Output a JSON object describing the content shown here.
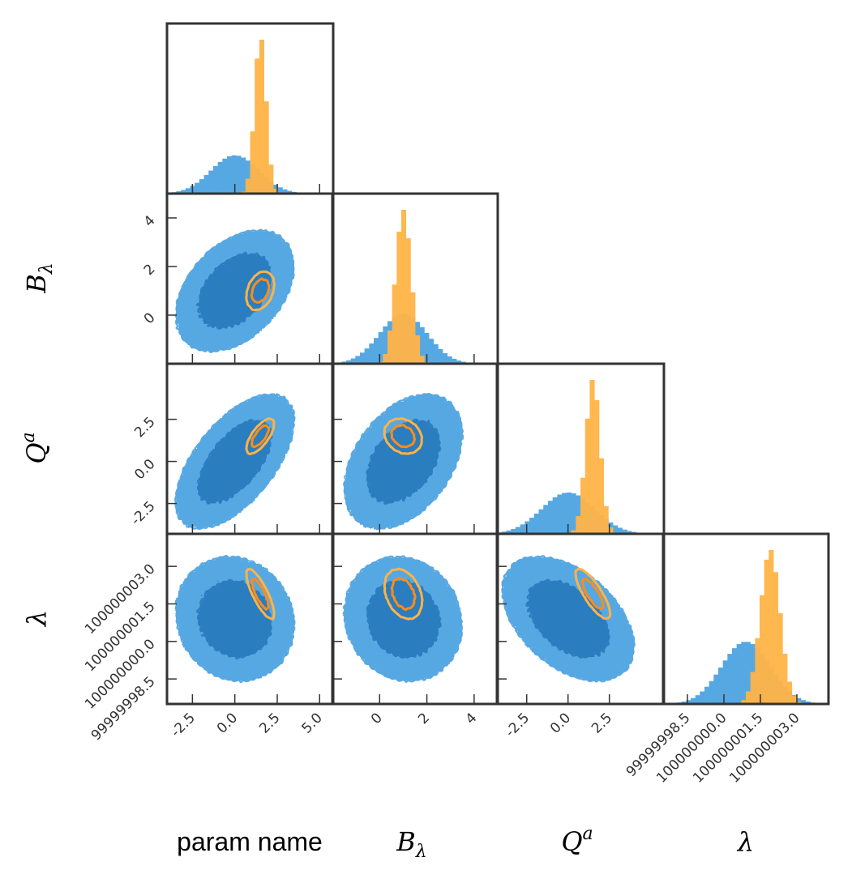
{
  "chart_data": {
    "type": "corner",
    "parameters": [
      {
        "key": "p0",
        "label": "param name",
        "base": "",
        "sub": "",
        "sup": "",
        "range": [
          -4.0,
          5.8
        ],
        "ticks": [
          -2.5,
          0.0,
          2.5,
          5.0
        ],
        "tick_labels": [
          "-2.5",
          "0.0",
          "2.5",
          "5.0"
        ]
      },
      {
        "key": "p1",
        "label": "",
        "base": "B",
        "sub": "λ",
        "sup": "",
        "range": [
          -2.0,
          5.0
        ],
        "ticks": [
          0,
          2,
          4
        ],
        "tick_labels": [
          "0",
          "2",
          "4"
        ]
      },
      {
        "key": "p2",
        "label": "",
        "base": "Q",
        "sub": "",
        "sup": "a",
        "range": [
          -4.3,
          5.8
        ],
        "ticks": [
          -2.5,
          0.0,
          2.5
        ],
        "tick_labels": [
          "-2.5",
          "0.0",
          "2.5"
        ]
      },
      {
        "key": "p3",
        "label": "",
        "base": "λ",
        "sub": "",
        "sup": "",
        "range": [
          99999997.5,
          100000004.3
        ],
        "ticks": [
          99999998.5,
          100000000.0,
          100000001.5,
          100000003.0
        ],
        "tick_labels": [
          "99999998.5",
          "100000000.0",
          "100000001.5",
          "100000003.0"
        ]
      }
    ],
    "series": [
      {
        "name": "",
        "color": "#56a8e3",
        "color_dark": "#2a7dbe",
        "style": "filled",
        "mean": [
          0.0,
          1.0,
          0.0,
          100000000.9
        ],
        "std": [
          1.4,
          1.0,
          1.6,
          1.0
        ],
        "corr": [
          [
            1,
            0.4,
            0.6,
            -0.1
          ],
          [
            0.4,
            1,
            0.4,
            -0.1
          ],
          [
            0.6,
            0.4,
            1,
            -0.45
          ],
          [
            -0.1,
            -0.1,
            -0.45,
            1
          ]
        ]
      },
      {
        "name": "",
        "color": "#ffb347",
        "color_dark": "#ff8c1a",
        "style": "outline",
        "mean": [
          1.5,
          1.0,
          1.5,
          100000001.9
        ],
        "std": [
          0.33,
          0.32,
          0.42,
          0.4
        ],
        "corr": [
          [
            1,
            0.3,
            0.7,
            -0.8
          ],
          [
            0.3,
            1,
            -0.2,
            -0.3
          ],
          [
            0.7,
            -0.2,
            1,
            -0.8
          ],
          [
            -0.8,
            -0.3,
            -0.8,
            1
          ]
        ]
      }
    ],
    "contour_levels": [
      0.6827,
      0.9545
    ],
    "colors": {
      "frame": "#333333",
      "blue_outer": "#56a8e3",
      "blue_inner": "#2a7dbe",
      "orange_outer": "#ffb347",
      "orange_inner": "#ff8c1a"
    }
  }
}
